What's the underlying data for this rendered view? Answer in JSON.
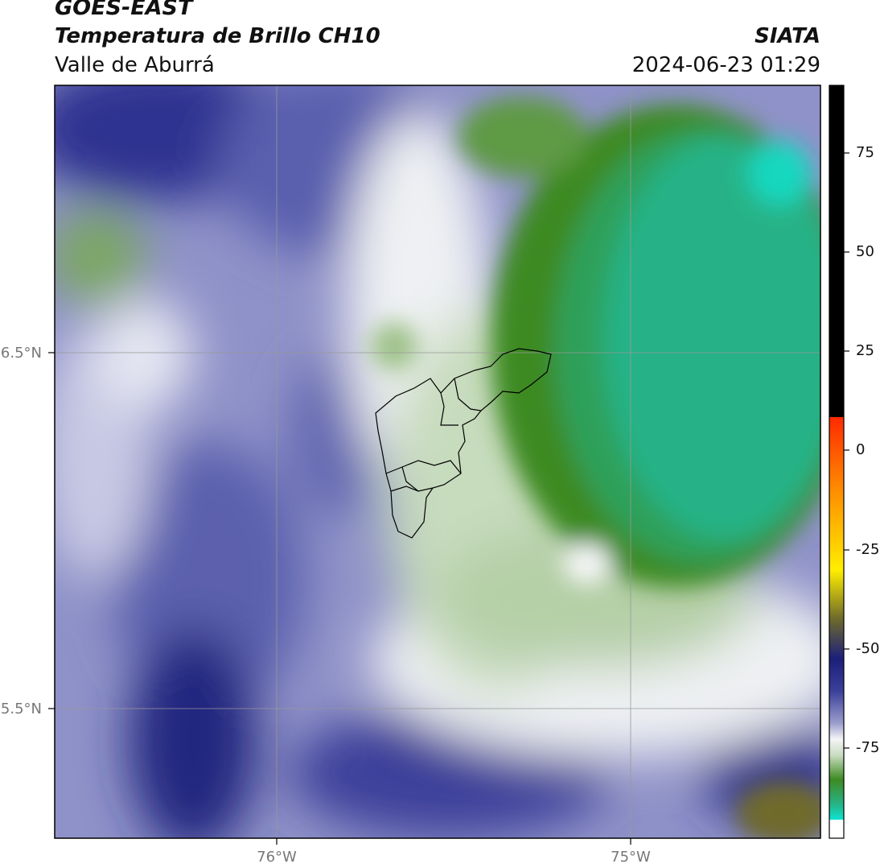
{
  "header": {
    "satellite": "GOES-EAST",
    "product": "Temperatura de Brillo CH10",
    "region": "Valle de Aburrá",
    "organization": "SIATA",
    "timestamp": "2024-06-23 01:29"
  },
  "map": {
    "lat_labels": [
      "6.5°N",
      "5.5°N"
    ],
    "lon_labels": [
      "76°W",
      "75°W"
    ],
    "colors": {
      "deep_blue": "#1c1f7a",
      "mid_blue": "#6b6fb5",
      "pale": "#f1f2f6",
      "light_green": "#c9dcc0",
      "mid_green": "#7ea862",
      "dark_green": "#3e8a22",
      "teal": "#27b283",
      "cyan": "#17d8c0"
    }
  },
  "colorbar": {
    "ticks": [
      "75",
      "50",
      "25",
      "0",
      "-25",
      "-50",
      "-75"
    ]
  }
}
